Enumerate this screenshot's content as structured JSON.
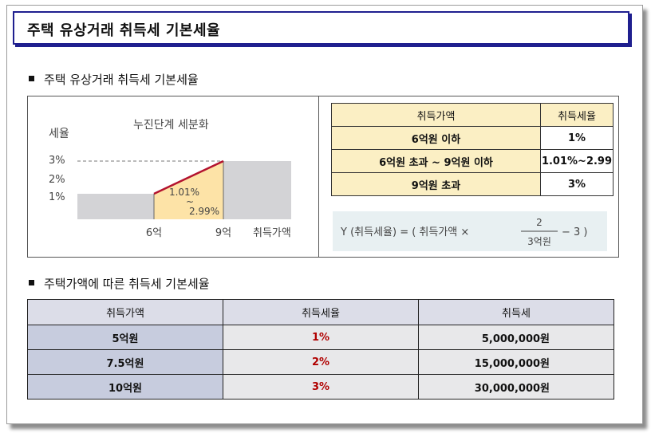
{
  "title": "주택 유상거래 취득세 기본세율",
  "section1_heading": "주택 유상거래 취득세 기본세율",
  "section2_heading": "주택가액에 따른 취득세 기본세율",
  "graph": {
    "caption": "누진단계 세분화",
    "y_axis_label": "세율",
    "y_ticks": [
      "3%",
      "2%",
      "1%"
    ],
    "x_ticks": [
      "6억",
      "9억"
    ],
    "x_axis_label": "취득가액",
    "range_label_top": "1.01%",
    "range_label_mid": "~",
    "range_label_bottom": "2.99%",
    "colors": {
      "fill": "#d3d3d6",
      "highlight": "#fde3a7",
      "line": "#b3122e"
    }
  },
  "rate_table": {
    "headers": [
      "취득가액",
      "취득세율"
    ],
    "rows": [
      [
        "6억원 이하",
        "1%"
      ],
      [
        "6억원 초과 ~ 9억원 이하",
        "1.01%~2.99"
      ],
      [
        "9억원 초과",
        "3%"
      ]
    ]
  },
  "formula": {
    "prefix": "Y (취득세율) = ( 취득가액 ×",
    "numerator": "2",
    "denominator": "3억원",
    "suffix": "− 3 )"
  },
  "tax_table": {
    "headers": [
      "취득가액",
      "취득세율",
      "취득세"
    ],
    "rows": [
      [
        "5억원",
        "1%",
        "5,000,000원"
      ],
      [
        "7.5억원",
        "2%",
        "15,000,000원"
      ],
      [
        "10억원",
        "3%",
        "30,000,000원"
      ]
    ]
  }
}
